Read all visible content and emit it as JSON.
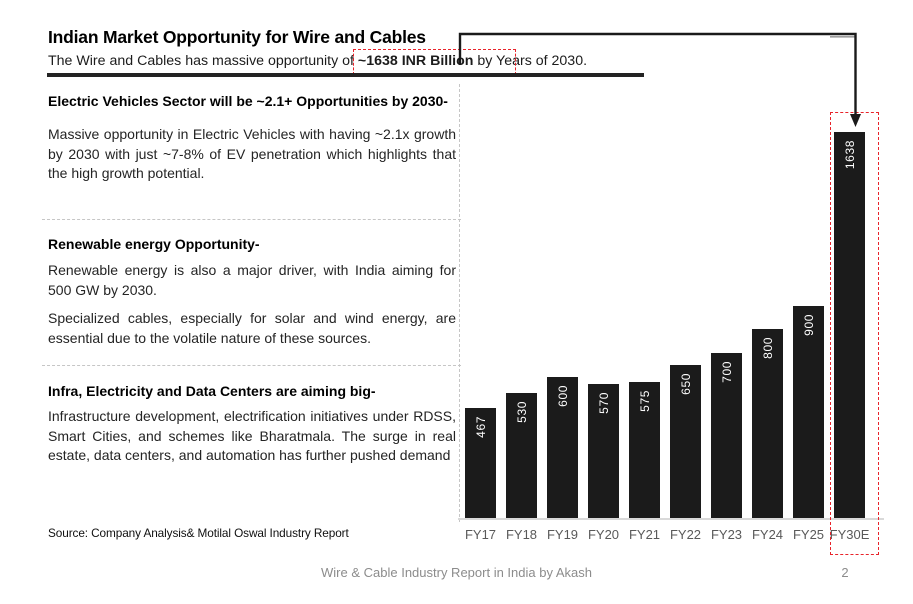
{
  "header": {
    "title": "Indian Market Opportunity for Wire and Cables",
    "subtitle_prefix": "The Wire and Cables has massive opportunity  of ",
    "subtitle_highlight": "~1638 INR Billion",
    "subtitle_suffix": " by Years of 2030."
  },
  "sections": [
    {
      "heading": "Electric Vehicles Sector will be ~2.1+ Opportunities by 2030-",
      "paragraphs": [
        "Massive opportunity in Electric Vehicles with having ~2.1x growth by 2030 with just ~7-8% of EV penetration which highlights that the high growth potential."
      ]
    },
    {
      "heading": "Renewable energy Opportunity-",
      "paragraphs": [
        "Renewable energy is also a major driver, with India aiming for 500 GW by 2030.",
        "Specialized cables, especially for solar and wind energy, are essential due to the volatile nature of these sources."
      ]
    },
    {
      "heading": "Infra, Electricity and Data Centers are aiming big-",
      "paragraphs": [
        "Infrastructure development, electrification initiatives under RDSS, Smart Cities, and schemes like Bharatmala. The surge in real estate, data centers, and automation has further pushed demand"
      ]
    }
  ],
  "source_note": "Source: Company Analysis& Motilal Oswal Industry Report",
  "footer": {
    "text": "Wire & Cable Industry Report in India by Akash",
    "page_number": "2"
  },
  "chart_data": {
    "type": "bar",
    "categories": [
      "FY17",
      "FY18",
      "FY19",
      "FY20",
      "FY21",
      "FY22",
      "FY23",
      "FY24",
      "FY25",
      "FY30E"
    ],
    "values": [
      467,
      530,
      600,
      570,
      575,
      650,
      700,
      800,
      900,
      1638
    ],
    "title": "",
    "xlabel": "",
    "ylabel": "",
    "ylim": [
      0,
      1780
    ],
    "grid": false,
    "legend": false,
    "data_labels": "inside-end, rotated vertical (reads bottom-to-top), white",
    "highlight_category": "FY30E",
    "bar_color": "#1b1b1b",
    "axis_label_color": "#595959"
  },
  "colors": {
    "accent_red": "#e8232a",
    "bar_fill": "#1b1b1b",
    "dashed_guide_gray": "#c6c6c6",
    "footer_gray": "#8c8c8c"
  }
}
